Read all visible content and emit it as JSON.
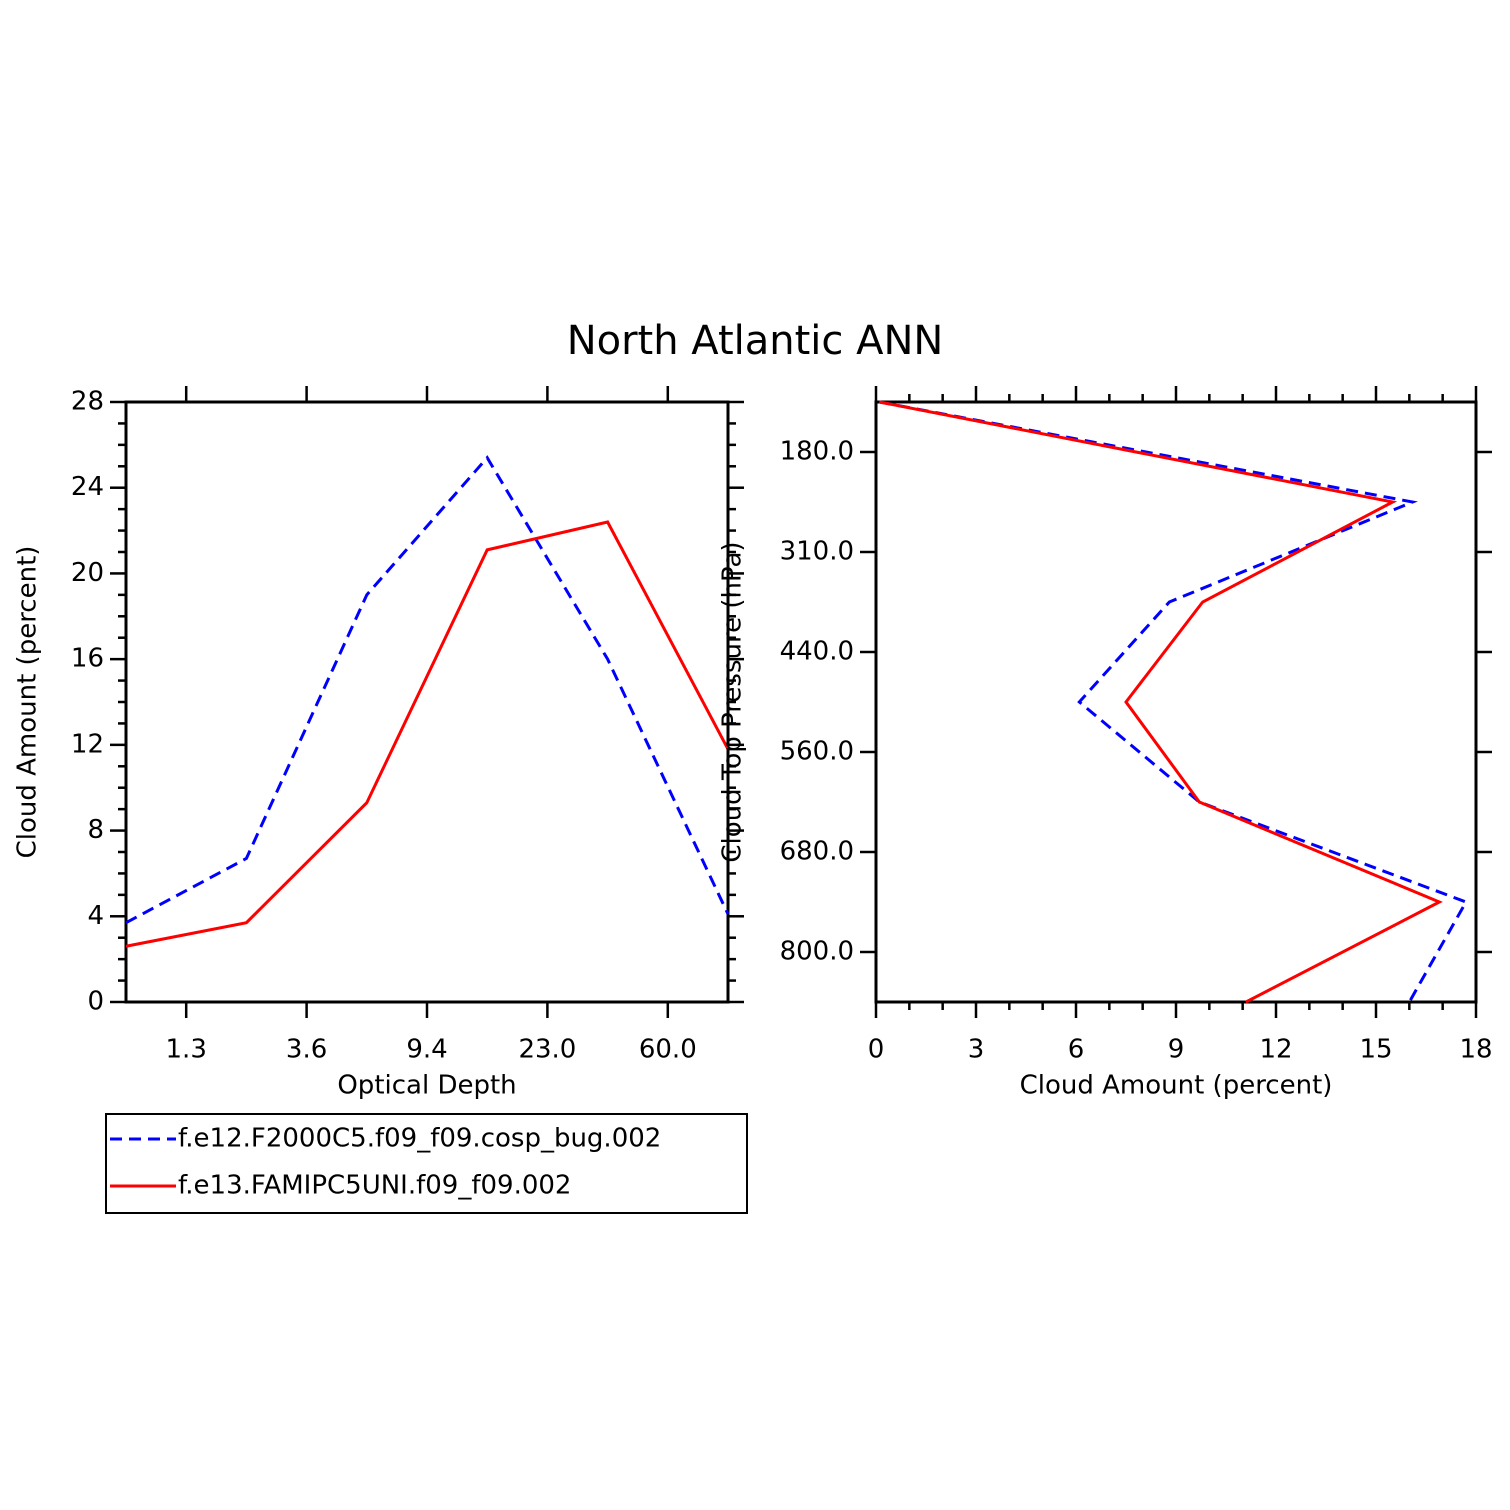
{
  "title": "North Atlantic ANN",
  "chart_data": [
    {
      "type": "line",
      "orientation": "vertical",
      "xlabel": "Optical Depth",
      "ylabel": "Cloud Amount (percent)",
      "x": [
        0,
        1,
        2,
        3,
        4,
        5
      ],
      "xlim": [
        0,
        5
      ],
      "xticks": [
        {
          "value": 0.5,
          "label": "1.3"
        },
        {
          "value": 1.5,
          "label": "3.6"
        },
        {
          "value": 2.5,
          "label": "9.4"
        },
        {
          "value": 3.5,
          "label": "23.0"
        },
        {
          "value": 4.5,
          "label": "60.0"
        }
      ],
      "ylim": [
        0,
        28
      ],
      "yticks": [
        0,
        4,
        8,
        12,
        16,
        20,
        24,
        28
      ],
      "series": [
        {
          "name": "f.e12.F2000C5.f09_f09.cosp_bug.002",
          "color": "#0000ff",
          "linestyle": "dashed",
          "values": [
            3.7,
            6.7,
            19.0,
            25.4,
            16.0,
            4.1
          ]
        },
        {
          "name": "f.e13.FAMIPC5UNI.f09_f09.002",
          "color": "#ff0000",
          "linestyle": "solid",
          "values": [
            2.6,
            3.7,
            9.3,
            21.1,
            22.4,
            11.8
          ]
        }
      ]
    },
    {
      "type": "line",
      "orientation": "horizontal",
      "xlabel": "Cloud Amount (percent)",
      "ylabel": "Cloud Top Pressure (hPa)",
      "y": [
        0,
        1,
        2,
        3,
        4,
        5,
        6
      ],
      "ylim": [
        6,
        0
      ],
      "yticks": [
        {
          "value": 0.5,
          "label": "180.0"
        },
        {
          "value": 1.5,
          "label": "310.0"
        },
        {
          "value": 2.5,
          "label": "440.0"
        },
        {
          "value": 3.5,
          "label": "560.0"
        },
        {
          "value": 4.5,
          "label": "680.0"
        },
        {
          "value": 5.5,
          "label": "800.0"
        }
      ],
      "xlim": [
        0,
        18
      ],
      "xticks": [
        0,
        3,
        6,
        9,
        12,
        15,
        18
      ],
      "series": [
        {
          "color": "#0000ff",
          "linestyle": "dashed",
          "values": [
            0.1,
            16.1,
            8.8,
            6.1,
            9.7,
            17.7,
            16.0
          ]
        },
        {
          "color": "#ff0000",
          "linestyle": "solid",
          "values": [
            0.1,
            15.5,
            9.8,
            7.5,
            9.7,
            16.9,
            11.1
          ]
        }
      ]
    }
  ]
}
